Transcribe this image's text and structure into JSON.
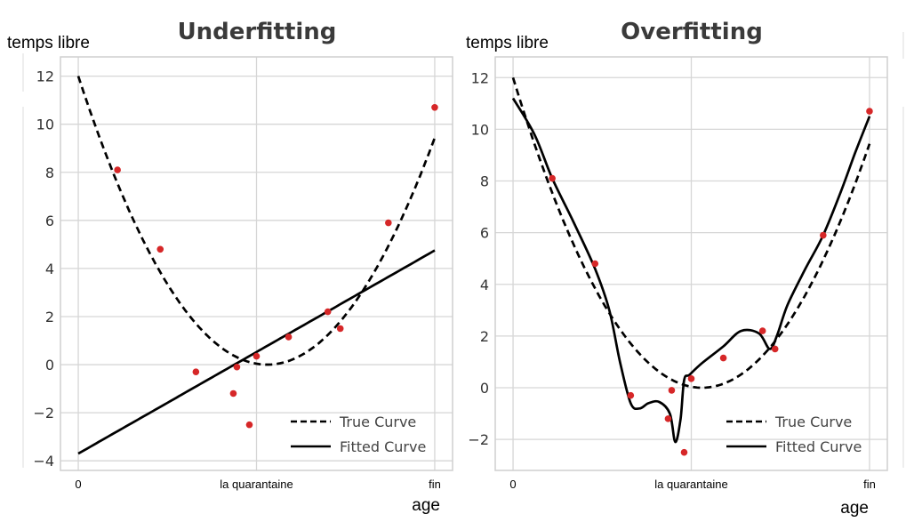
{
  "chart_data": [
    {
      "type": "line",
      "title": "Underfitting",
      "ylabel": "temps libre",
      "xlabel": "age",
      "ylim": [
        -4.4,
        12.8
      ],
      "xlim": [
        -0.5,
        10.5
      ],
      "yticks": [
        -4,
        -2,
        0,
        2,
        4,
        6,
        8,
        10,
        12
      ],
      "ytick_labels": [
        "−4",
        "−2",
        "0",
        "2",
        "4",
        "6",
        "8",
        "10",
        "12"
      ],
      "xticks": [
        0,
        5,
        10
      ],
      "xtick_labels": [
        "0",
        "la quarantaine",
        "fin"
      ],
      "grid": true,
      "legend_position": "lower-right",
      "series": [
        {
          "name": "True Curve",
          "style": "dashed",
          "color": "#000000",
          "function": "quadratic",
          "x": [
            0,
            5.3,
            10
          ],
          "y": [
            12,
            0,
            12
          ]
        },
        {
          "name": "Fitted Curve",
          "style": "solid",
          "color": "#000000",
          "function": "linear",
          "x": [
            0,
            10
          ],
          "y": [
            -3.7,
            4.75
          ]
        }
      ],
      "points": {
        "color": "#d62728",
        "x": [
          1.1,
          2.3,
          3.3,
          4.35,
          4.45,
          4.8,
          5.0,
          5.9,
          7.0,
          7.35,
          8.7,
          10.0
        ],
        "y": [
          8.1,
          4.8,
          -0.3,
          -1.2,
          -0.1,
          -2.5,
          0.35,
          1.15,
          2.2,
          1.5,
          5.9,
          10.7
        ]
      }
    },
    {
      "type": "line",
      "title": "Overfitting",
      "ylabel": "temps libre",
      "xlabel": "age",
      "ylim": [
        -3.2,
        12.8
      ],
      "xlim": [
        -0.5,
        10.5
      ],
      "yticks": [
        -2,
        0,
        2,
        4,
        6,
        8,
        10,
        12
      ],
      "ytick_labels": [
        "−2",
        "0",
        "2",
        "4",
        "6",
        "8",
        "10",
        "12"
      ],
      "xticks": [
        0,
        5,
        10
      ],
      "xtick_labels": [
        "0",
        "la quarantaine",
        "fin"
      ],
      "grid": true,
      "legend_position": "lower-right",
      "series": [
        {
          "name": "True Curve",
          "style": "dashed",
          "color": "#000000",
          "function": "quadratic",
          "x": [
            0,
            5.3,
            10
          ],
          "y": [
            12,
            0,
            12
          ]
        },
        {
          "name": "Fitted Curve",
          "style": "solid",
          "color": "#000000",
          "x": [
            0,
            0.6,
            1.1,
            1.7,
            2.3,
            2.7,
            3.0,
            3.3,
            3.55,
            3.8,
            4.1,
            4.4,
            4.55,
            4.7,
            4.8,
            4.95,
            5.3,
            5.9,
            6.4,
            6.9,
            7.2,
            7.4,
            7.7,
            8.2,
            8.7,
            9.2,
            9.6,
            10.0
          ],
          "y": [
            11.2,
            9.8,
            8.1,
            6.4,
            4.6,
            3.0,
            1.0,
            -0.6,
            -0.8,
            -0.6,
            -0.55,
            -1.0,
            -2.1,
            -1.2,
            0.3,
            0.5,
            0.95,
            1.6,
            2.2,
            2.1,
            1.5,
            2.0,
            3.2,
            4.6,
            5.9,
            7.6,
            9.1,
            10.5
          ]
        }
      ],
      "points": {
        "color": "#d62728",
        "x": [
          1.1,
          2.3,
          3.3,
          4.35,
          4.45,
          4.8,
          5.0,
          5.9,
          7.0,
          7.35,
          8.7,
          10.0
        ],
        "y": [
          8.1,
          4.8,
          -0.3,
          -1.2,
          -0.1,
          -2.5,
          0.35,
          1.15,
          2.2,
          1.5,
          5.9,
          10.7
        ]
      }
    }
  ]
}
